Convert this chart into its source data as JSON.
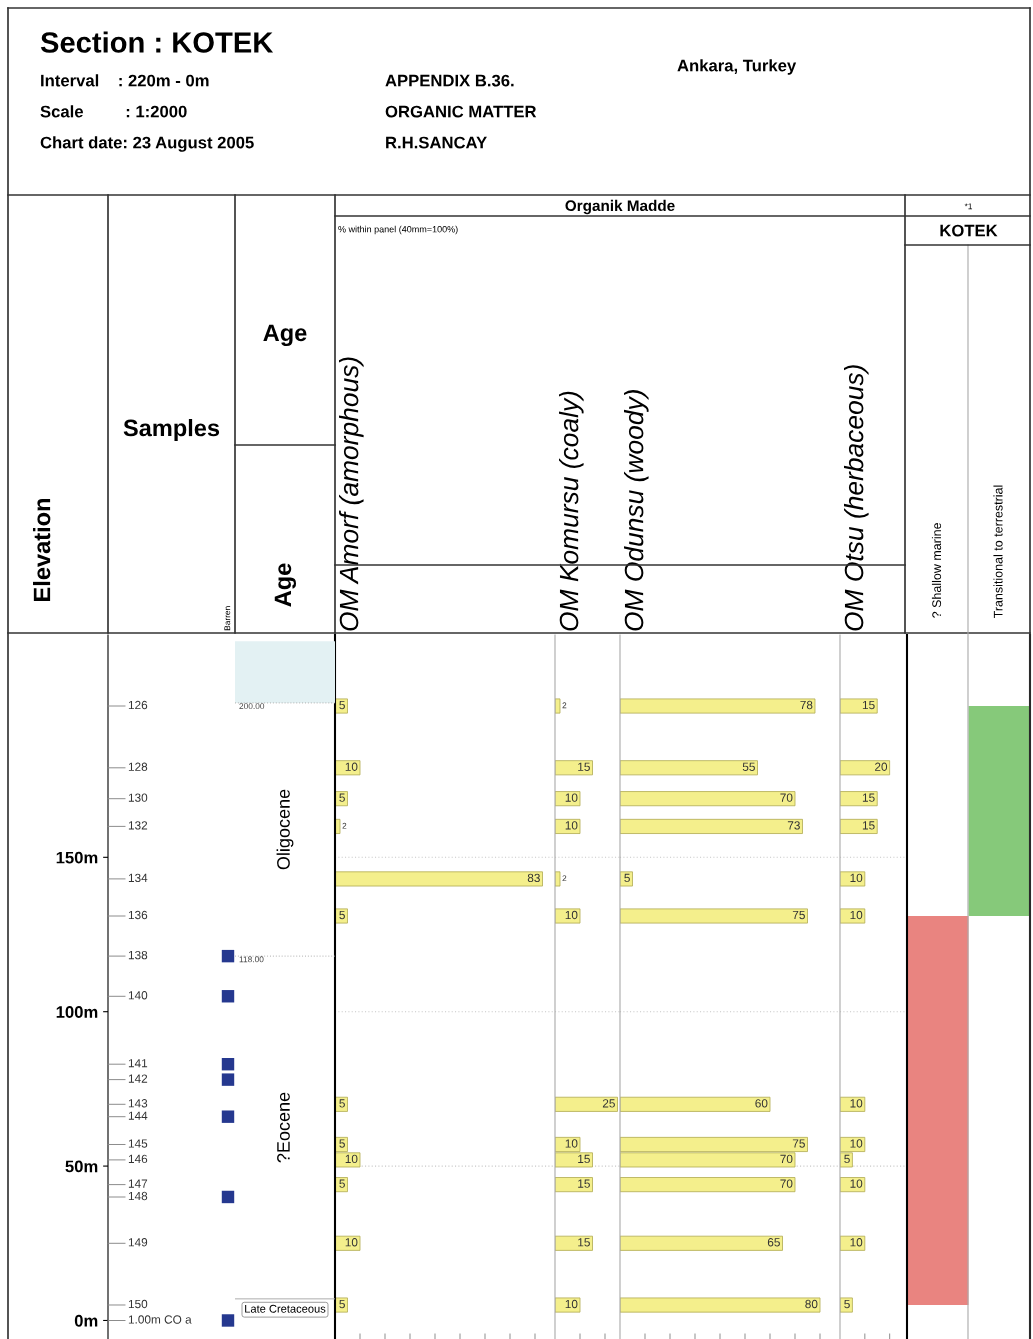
{
  "chart_data": [
    {
      "type": "scatter",
      "title": "Section : KOTEK",
      "annotations": [
        "Interval    : 220m - 0m",
        "Scale         : 1:2000",
        "Chart date: 23 August 2005",
        "APPENDIX B.36.",
        "ORGANIC MATTER",
        "R.H.SANCAY",
        "Ankara, Turkey",
        "Age",
        "Age",
        "Oligocene",
        "?Eocene",
        "Late Cretaceous",
        "126",
        "128",
        "130",
        "132",
        "134",
        "136",
        "138",
        "140",
        "141",
        "142",
        "143",
        "144",
        "145",
        "146",
        "147",
        "148",
        "149",
        "150",
        "1.00m CO a"
      ],
      "xlabel": "Samples",
      "ylabel": "Elevation",
      "categories": [
        "Barren"
      ],
      "marker": "square",
      "ylim": [
        -6,
        222
      ],
      "yticks": [
        {
          "value": 0,
          "label": "0m"
        },
        {
          "value": 50,
          "label": "50m"
        },
        {
          "value": 100,
          "label": "100m"
        },
        {
          "value": 150,
          "label": "150m"
        }
      ],
      "bands": [
        {
          "axis": "y",
          "from": 200,
          "to": 220,
          "label": null,
          "color": "#e3f1f3"
        }
      ],
      "ref_lines": [
        {
          "axis": "y",
          "value": 200,
          "label": "200.00"
        },
        {
          "axis": "y",
          "value": 118,
          "label": "118.00"
        },
        {
          "axis": "y",
          "value": 7,
          "label": null,
          "line_style": "solid"
        }
      ],
      "series": [
        {
          "x": [
            "Barren",
            "Barren",
            "Barren",
            "Barren",
            "Barren",
            "Barren",
            "Barren"
          ],
          "values": [
            118,
            105,
            83,
            78,
            66,
            40,
            0
          ],
          "color": "#25388f"
        }
      ]
    },
    {
      "type": "bar",
      "orientation": "horizontal",
      "title": "OM Amorf (amorphous)",
      "annotations": [
        "Organik Madde",
        "% within panel (40mm=100%)"
      ],
      "x": [
        199,
        179,
        169,
        160,
        143,
        131,
        70,
        57,
        52,
        44,
        25,
        5
      ],
      "values": [
        5,
        10,
        5,
        2,
        83,
        5,
        5,
        5,
        10,
        5,
        10,
        5
      ],
      "color": "#f4ef8c",
      "data_labels": true,
      "xlim": [
        0,
        88
      ],
      "xticks": [
        {
          "value": 10,
          "label": null
        },
        {
          "value": 20,
          "label": null
        },
        {
          "value": 30,
          "label": null
        },
        {
          "value": 40,
          "label": null
        },
        {
          "value": 50,
          "label": null
        },
        {
          "value": 60,
          "label": null
        },
        {
          "value": 70,
          "label": null
        },
        {
          "value": 80,
          "label": null
        }
      ],
      "ylim": [
        -6,
        222
      ],
      "yticks": [
        50,
        100,
        150
      ],
      "grid": "y",
      "tick_labels": false
    },
    {
      "type": "bar",
      "orientation": "horizontal",
      "title": "OM Komursu (coaly)",
      "x": [
        199,
        179,
        169,
        160,
        143,
        131,
        70,
        57,
        52,
        44,
        25,
        5
      ],
      "values": [
        2,
        15,
        10,
        10,
        2,
        10,
        25,
        10,
        15,
        15,
        15,
        10
      ],
      "color": "#f4ef8c",
      "data_labels": true,
      "xlim": [
        0,
        26
      ],
      "xticks": [
        {
          "value": 10,
          "label": null
        },
        {
          "value": 20,
          "label": null
        }
      ],
      "ylim": [
        -6,
        222
      ],
      "yticks": [
        50,
        100,
        150
      ],
      "grid": "y",
      "tick_labels": false
    },
    {
      "type": "bar",
      "orientation": "horizontal",
      "title": "OM Odunsu (woody)",
      "x": [
        199,
        179,
        169,
        160,
        143,
        131,
        70,
        57,
        52,
        44,
        25,
        5
      ],
      "values": [
        78,
        55,
        70,
        73,
        5,
        75,
        60,
        75,
        70,
        70,
        65,
        80
      ],
      "color": "#f4ef8c",
      "data_labels": true,
      "xlim": [
        0,
        88
      ],
      "xticks": [
        {
          "value": 10,
          "label": null
        },
        {
          "value": 20,
          "label": null
        },
        {
          "value": 30,
          "label": null
        },
        {
          "value": 40,
          "label": null
        },
        {
          "value": 50,
          "label": null
        },
        {
          "value": 60,
          "label": null
        },
        {
          "value": 70,
          "label": null
        },
        {
          "value": 80,
          "label": null
        }
      ],
      "ylim": [
        -6,
        222
      ],
      "yticks": [
        50,
        100,
        150
      ],
      "grid": "y",
      "tick_labels": false
    },
    {
      "type": "bar",
      "orientation": "horizontal",
      "title": "OM Otsu (herbaceous)",
      "x": [
        199,
        179,
        169,
        160,
        143,
        131,
        70,
        57,
        52,
        44,
        25,
        5
      ],
      "values": [
        15,
        20,
        15,
        15,
        10,
        10,
        10,
        10,
        5,
        10,
        10,
        5
      ],
      "color": "#f4ef8c",
      "data_labels": true,
      "xlim": [
        0,
        27
      ],
      "xticks": [
        {
          "value": 10,
          "label": null
        },
        {
          "value": 20,
          "label": null
        }
      ],
      "ylim": [
        -6,
        222
      ],
      "yticks": [
        50,
        100,
        150
      ],
      "grid": "y",
      "tick_labels": false
    },
    {
      "type": "bar",
      "title": "KOTEK",
      "annotations": [
        "*1"
      ],
      "categories": [
        "? Shallow marine",
        "Transitional to terrestrial"
      ],
      "base": [
        5,
        131
      ],
      "values": [
        126,
        68
      ],
      "colors": [
        "#e98480",
        "#86c97a"
      ],
      "ylim": [
        -6,
        222
      ],
      "tick_labels": "x"
    }
  ]
}
